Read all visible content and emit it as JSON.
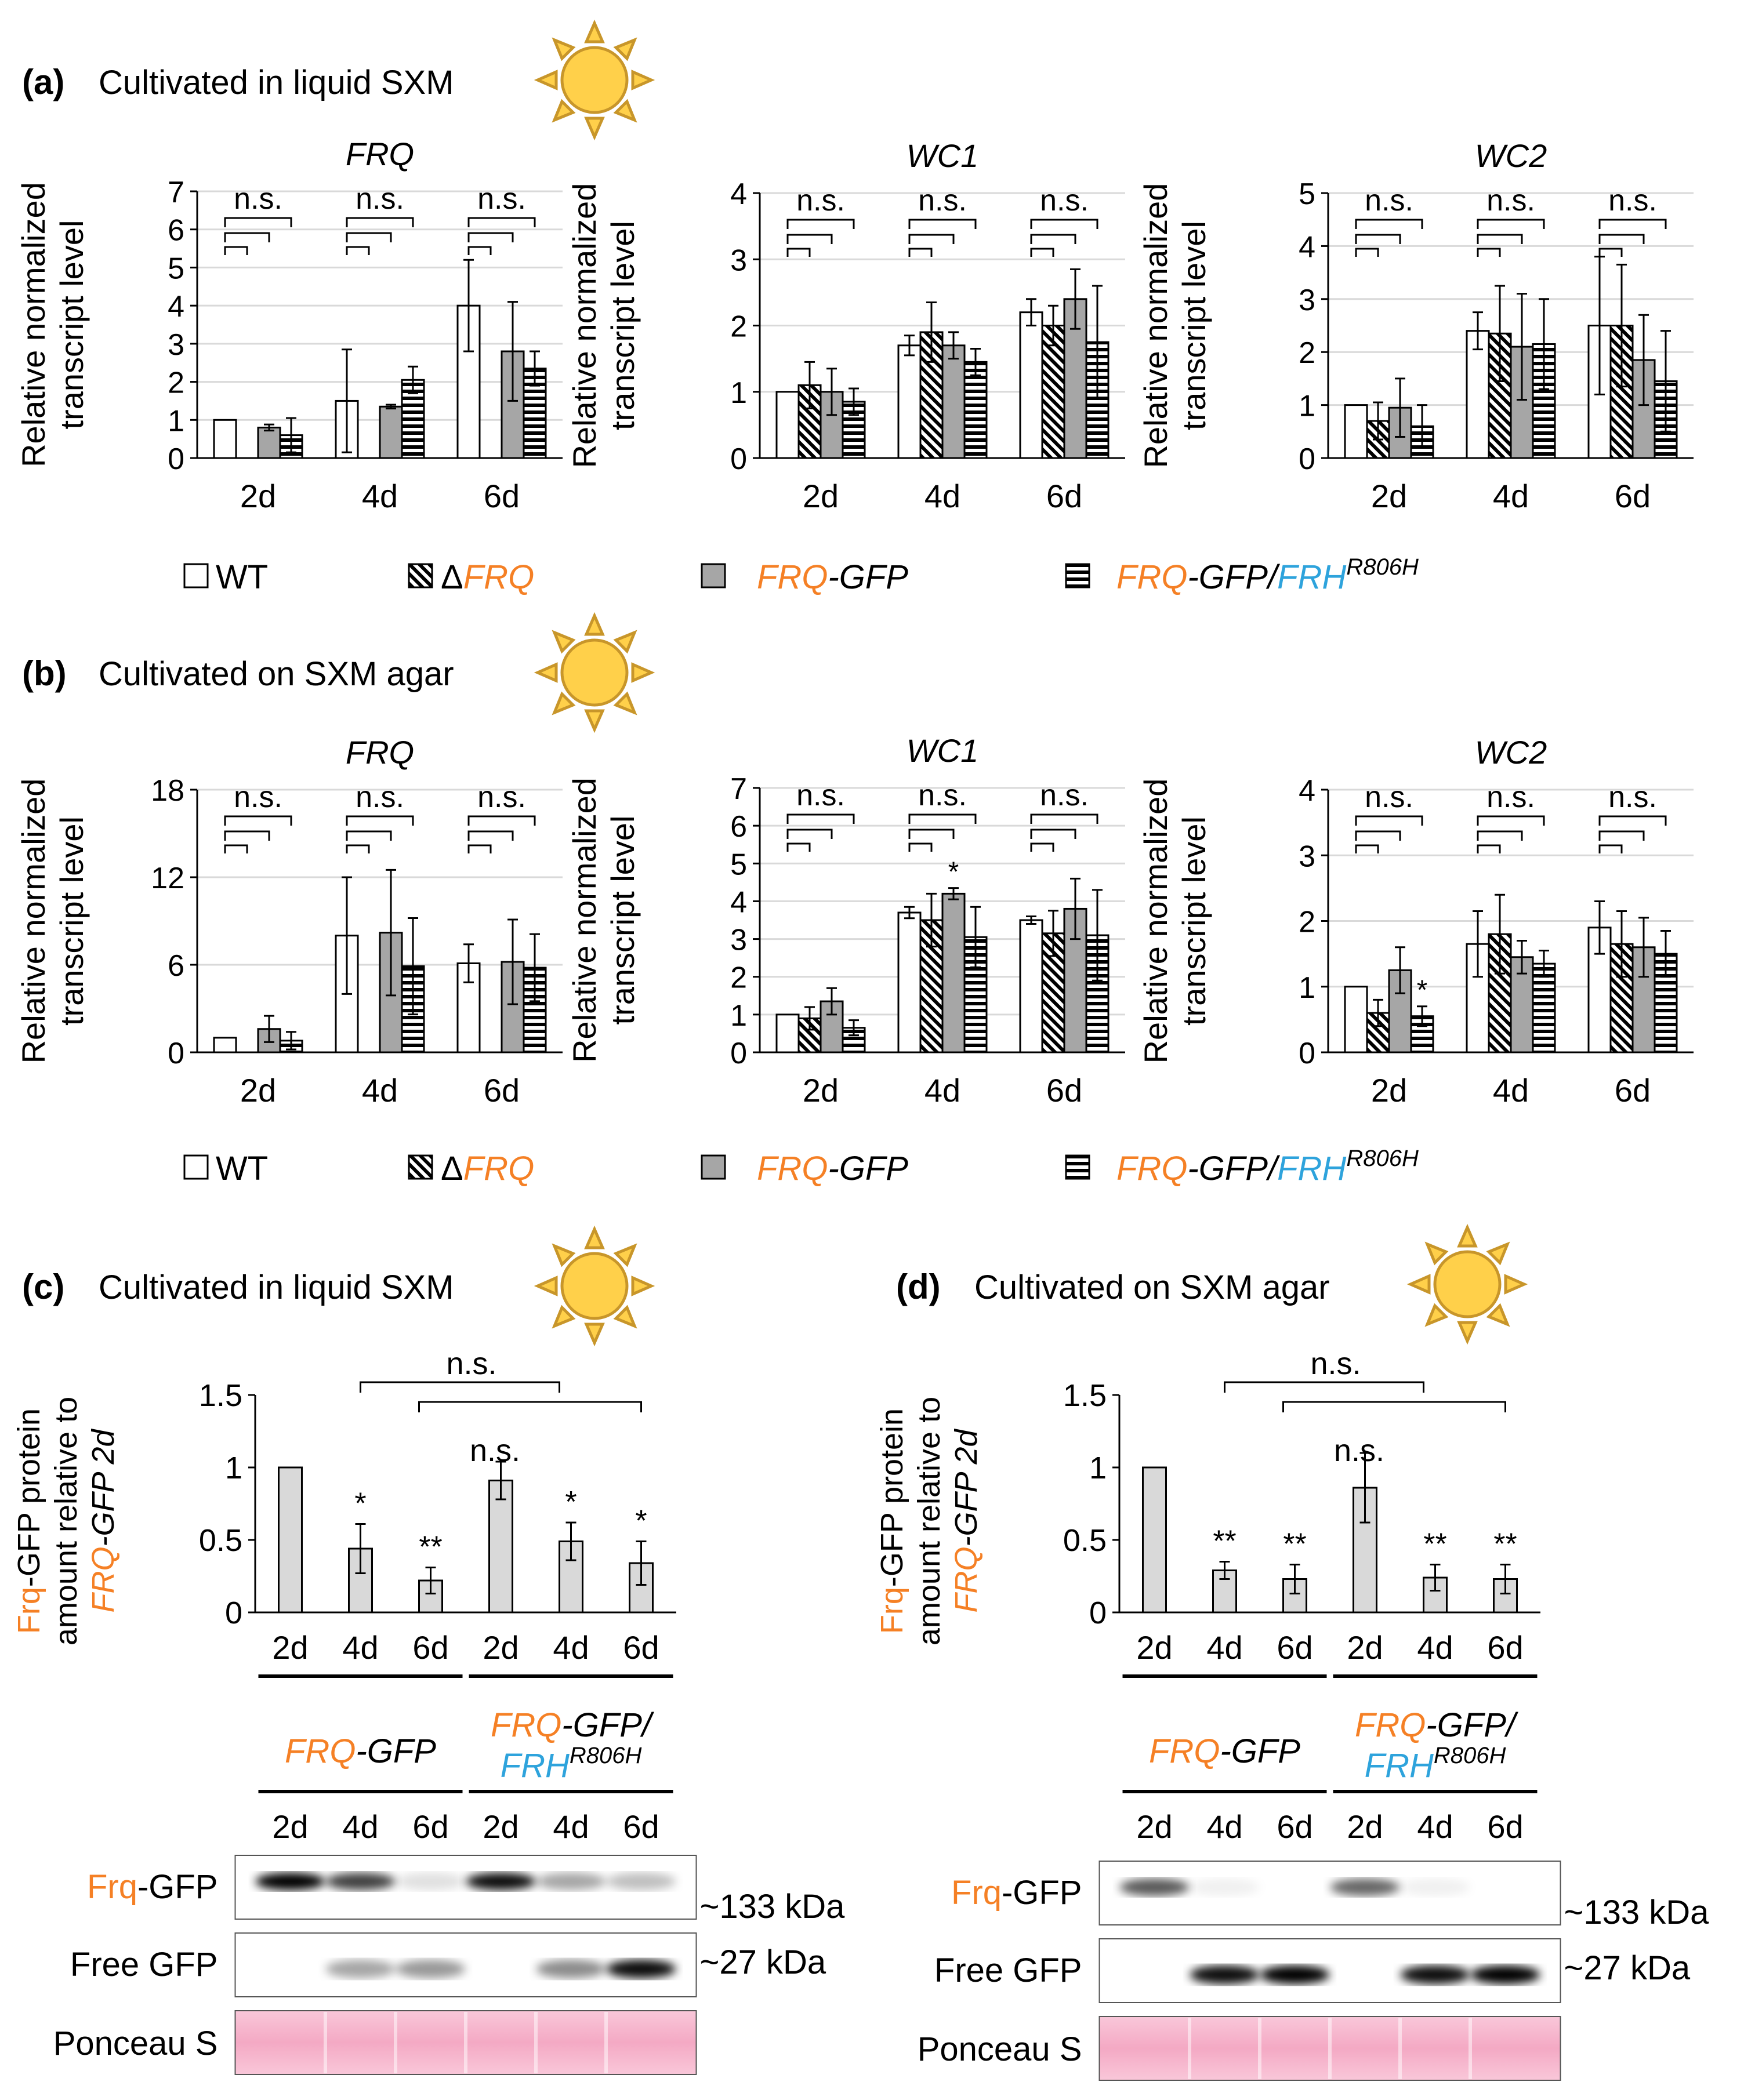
{
  "colors": {
    "frq_orange": "#f58025",
    "frh_blue": "#2ea3dc",
    "sun_fill": "#ffd04a",
    "sun_stroke": "#c8962a",
    "bar_solid": "#a6a6a6",
    "bar_light": "#d9d9d9",
    "ponceau": "#f7b6cc"
  },
  "icons": [
    "sun-icon"
  ],
  "panels": {
    "a": {
      "label": "(a)",
      "title": "Cultivated in liquid SXM"
    },
    "b": {
      "label": "(b)",
      "title": "Cultivated on SXM agar"
    },
    "c": {
      "label": "(c)",
      "title": "Cultivated in liquid SXM"
    },
    "d": {
      "label": "(d)",
      "title": "Cultivated on SXM agar"
    }
  },
  "ylabel_transcript": [
    "Relative normalized",
    "transcript level"
  ],
  "ylabel_protein": {
    "line1_orange": "Frq",
    "line1_rest": "-GFP protein",
    "line2": "amount relative to",
    "line3_orange": "FRQ",
    "line3_rest": "-GFP 2d"
  },
  "legend": {
    "wt": "WT",
    "dfrq_delta": "Δ",
    "dfrq_gene": "FRQ",
    "frqgfp_gene": "FRQ",
    "frqgfp_rest": "-GFP",
    "double_gene1": "FRQ",
    "double_mid": "-GFP/",
    "double_gene2": "FRH",
    "double_sup": "R806H"
  },
  "ns_label": "n.s.",
  "strain_labels": {
    "frqgfp_gene": "FRQ",
    "frqgfp_rest": "-GFP",
    "double_line1_gene": "FRQ",
    "double_line1_rest": "-GFP/",
    "double_line2_gene": "FRH",
    "double_line2_sup": "R806H"
  },
  "blot": {
    "lanes": [
      "2d",
      "4d",
      "6d",
      "2d",
      "4d",
      "6d"
    ],
    "rows": {
      "frq_orange": "Frq",
      "frq_rest": "-GFP",
      "free_gfp": "Free GFP",
      "ponceau": "Ponceau S"
    },
    "sizes": {
      "frq": "~133 kDa",
      "gfp": "~27 kDa"
    }
  },
  "chart_data": [
    {
      "id": "a-FRQ",
      "type": "bar",
      "title": "FRQ",
      "categories": [
        "2d",
        "4d",
        "6d"
      ],
      "ylim": [
        0,
        7
      ],
      "yticks": [
        "0",
        "1",
        "2",
        "3",
        "4",
        "5",
        "6",
        "7"
      ],
      "series": [
        {
          "name": "WT",
          "values": [
            1,
            1.5,
            4.0
          ],
          "errors": [
            0,
            1.35,
            1.2
          ]
        },
        {
          "name": "ΔFRQ",
          "values": [
            0,
            0,
            0
          ],
          "errors": [
            0,
            0,
            0
          ]
        },
        {
          "name": "FRQ-GFP",
          "values": [
            0.8,
            1.35,
            2.8
          ],
          "errors": [
            0.08,
            0.05,
            1.3
          ]
        },
        {
          "name": "FRQ-GFP/FRH R806H",
          "values": [
            0.6,
            2.05,
            2.35
          ],
          "errors": [
            0.45,
            0.35,
            0.45
          ]
        }
      ],
      "annotations": [
        "n.s.",
        "n.s.",
        "n.s."
      ]
    },
    {
      "id": "a-WC1",
      "type": "bar",
      "title": "WC1",
      "categories": [
        "2d",
        "4d",
        "6d"
      ],
      "ylim": [
        0,
        4
      ],
      "yticks": [
        "0",
        "1",
        "2",
        "3",
        "4"
      ],
      "series": [
        {
          "name": "WT",
          "values": [
            1,
            1.7,
            2.2
          ],
          "errors": [
            0,
            0.15,
            0.2
          ]
        },
        {
          "name": "ΔFRQ",
          "values": [
            1.1,
            1.9,
            2.0
          ],
          "errors": [
            0.35,
            0.45,
            0.3
          ]
        },
        {
          "name": "FRQ-GFP",
          "values": [
            1.0,
            1.7,
            2.4
          ],
          "errors": [
            0.35,
            0.2,
            0.45
          ]
        },
        {
          "name": "FRQ-GFP/FRH R806H",
          "values": [
            0.85,
            1.45,
            1.75
          ],
          "errors": [
            0.2,
            0.2,
            0.85
          ]
        }
      ],
      "annotations": [
        "n.s.",
        "n.s.",
        "n.s."
      ]
    },
    {
      "id": "a-WC2",
      "type": "bar",
      "title": "WC2",
      "categories": [
        "2d",
        "4d",
        "6d"
      ],
      "ylim": [
        0,
        5
      ],
      "yticks": [
        "0",
        "1",
        "2",
        "3",
        "4",
        "5"
      ],
      "series": [
        {
          "name": "WT",
          "values": [
            1,
            2.4,
            2.5
          ],
          "errors": [
            0,
            0.35,
            1.3
          ]
        },
        {
          "name": "ΔFRQ",
          "values": [
            0.7,
            2.35,
            2.5
          ],
          "errors": [
            0.35,
            0.9,
            1.15
          ]
        },
        {
          "name": "FRQ-GFP",
          "values": [
            0.95,
            2.1,
            1.85
          ],
          "errors": [
            0.55,
            1.0,
            0.85
          ]
        },
        {
          "name": "FRQ-GFP/FRH R806H",
          "values": [
            0.6,
            2.15,
            1.45
          ],
          "errors": [
            0.4,
            0.85,
            0.95
          ]
        }
      ],
      "annotations": [
        "n.s.",
        "n.s.",
        "n.s."
      ]
    },
    {
      "id": "b-FRQ",
      "type": "bar",
      "title": "FRQ",
      "categories": [
        "2d",
        "4d",
        "6d"
      ],
      "ylim": [
        0,
        18
      ],
      "yticks": [
        "0",
        "6",
        "12",
        "18"
      ],
      "series": [
        {
          "name": "WT",
          "values": [
            1,
            8.0,
            6.1
          ],
          "errors": [
            0,
            4.0,
            1.3
          ]
        },
        {
          "name": "ΔFRQ",
          "values": [
            0,
            0,
            0
          ],
          "errors": [
            0,
            0,
            0
          ]
        },
        {
          "name": "FRQ-GFP",
          "values": [
            1.6,
            8.2,
            6.2
          ],
          "errors": [
            0.9,
            4.3,
            2.9
          ]
        },
        {
          "name": "FRQ-GFP/FRH R806H",
          "values": [
            0.8,
            5.9,
            5.8
          ],
          "errors": [
            0.6,
            3.3,
            2.3
          ]
        }
      ],
      "annotations": [
        "n.s.",
        "n.s.",
        "n.s."
      ]
    },
    {
      "id": "b-WC1",
      "type": "bar",
      "title": "WC1",
      "categories": [
        "2d",
        "4d",
        "6d"
      ],
      "ylim": [
        0,
        7
      ],
      "yticks": [
        "0",
        "1",
        "2",
        "3",
        "4",
        "5",
        "6",
        "7"
      ],
      "series": [
        {
          "name": "WT",
          "values": [
            1,
            3.7,
            3.5
          ],
          "errors": [
            0,
            0.15,
            0.1
          ]
        },
        {
          "name": "ΔFRQ",
          "values": [
            0.9,
            3.5,
            3.15
          ],
          "errors": [
            0.3,
            0.7,
            0.6
          ]
        },
        {
          "name": "FRQ-GFP",
          "values": [
            1.35,
            4.2,
            3.8
          ],
          "errors": [
            0.35,
            0.15,
            0.8
          ]
        },
        {
          "name": "FRQ-GFP/FRH R806H",
          "values": [
            0.65,
            3.05,
            3.1
          ],
          "errors": [
            0.2,
            0.8,
            1.2
          ]
        }
      ],
      "annotations": [
        "n.s.",
        "n.s.",
        "n.s.",
        "*"
      ]
    },
    {
      "id": "b-WC2",
      "type": "bar",
      "title": "WC2",
      "categories": [
        "2d",
        "4d",
        "6d"
      ],
      "ylim": [
        0,
        4
      ],
      "yticks": [
        "0",
        "1",
        "2",
        "3",
        "4"
      ],
      "series": [
        {
          "name": "WT",
          "values": [
            1,
            1.65,
            1.9
          ],
          "errors": [
            0,
            0.5,
            0.4
          ]
        },
        {
          "name": "ΔFRQ",
          "values": [
            0.6,
            1.8,
            1.65
          ],
          "errors": [
            0.2,
            0.6,
            0.5
          ]
        },
        {
          "name": "FRQ-GFP",
          "values": [
            1.25,
            1.45,
            1.6
          ],
          "errors": [
            0.35,
            0.25,
            0.45
          ]
        },
        {
          "name": "FRQ-GFP/FRH R806H",
          "values": [
            0.55,
            1.35,
            1.5
          ],
          "errors": [
            0.15,
            0.2,
            0.35
          ]
        }
      ],
      "annotations": [
        "n.s.",
        "n.s.",
        "n.s.",
        "*"
      ]
    },
    {
      "id": "c-protein",
      "type": "bar",
      "categories": [
        "2d",
        "4d",
        "6d",
        "2d",
        "4d",
        "6d"
      ],
      "groups": [
        "FRQ-GFP",
        "FRQ-GFP/FRH R806H"
      ],
      "ylim": [
        0,
        1.5
      ],
      "yticks": [
        "0",
        "0.5",
        "1",
        "1.5"
      ],
      "values": [
        1,
        0.44,
        0.22,
        0.91,
        0.49,
        0.34
      ],
      "errors": [
        0,
        0.17,
        0.09,
        0.13,
        0.13,
        0.15
      ],
      "stars": [
        "",
        "*",
        "**",
        "",
        "*",
        "*"
      ],
      "annotations": [
        "n.s.",
        "n.s."
      ]
    },
    {
      "id": "d-protein",
      "type": "bar",
      "categories": [
        "2d",
        "4d",
        "6d",
        "2d",
        "4d",
        "6d"
      ],
      "groups": [
        "FRQ-GFP",
        "FRQ-GFP/FRH R806H"
      ],
      "ylim": [
        0,
        1.5
      ],
      "yticks": [
        "0",
        "0.5",
        "1",
        "1.5"
      ],
      "values": [
        1,
        0.29,
        0.23,
        0.86,
        0.24,
        0.23
      ],
      "errors": [
        0,
        0.06,
        0.1,
        0.24,
        0.09,
        0.1
      ],
      "stars": [
        "",
        "**",
        "**",
        "",
        "**",
        "**"
      ],
      "annotations": [
        "n.s.",
        "n.s."
      ]
    }
  ]
}
